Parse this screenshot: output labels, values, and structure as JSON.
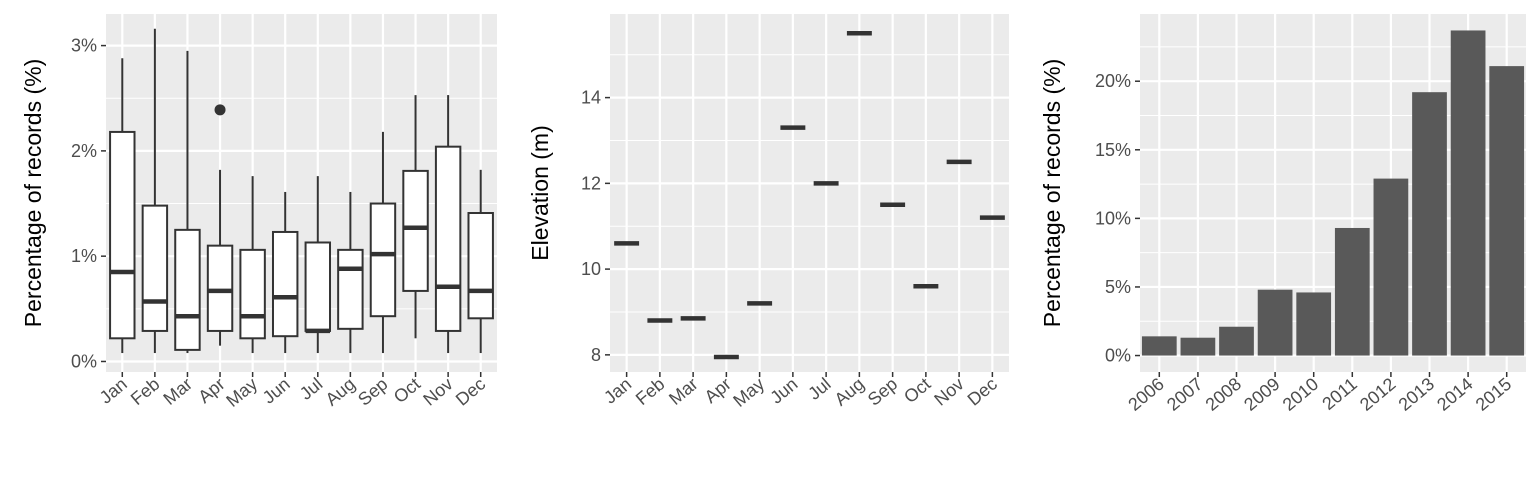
{
  "chart_data": [
    {
      "type": "boxplot",
      "ylabel": "Percentage of records (%)",
      "xlabel": "",
      "ylim": [
        -0.1,
        3.3
      ],
      "yticks": [
        0,
        1,
        2,
        3
      ],
      "ytick_labels": [
        "0%",
        "1%",
        "2%",
        "3%"
      ],
      "categories": [
        "Jan",
        "Feb",
        "Mar",
        "Apr",
        "May",
        "Jun",
        "Jul",
        "Aug",
        "Sep",
        "Oct",
        "Nov",
        "Dec"
      ],
      "boxes": [
        {
          "min": 0.08,
          "q1": 0.22,
          "median": 0.85,
          "q3": 2.18,
          "max": 2.88,
          "outliers": []
        },
        {
          "min": 0.08,
          "q1": 0.29,
          "median": 0.57,
          "q3": 1.48,
          "max": 3.16,
          "outliers": []
        },
        {
          "min": 0.08,
          "q1": 0.11,
          "median": 0.43,
          "q3": 1.25,
          "max": 2.95,
          "outliers": []
        },
        {
          "min": 0.15,
          "q1": 0.29,
          "median": 0.67,
          "q3": 1.1,
          "max": 1.82,
          "outliers": [
            2.39
          ]
        },
        {
          "min": 0.08,
          "q1": 0.22,
          "median": 0.43,
          "q3": 1.06,
          "max": 1.76,
          "outliers": []
        },
        {
          "min": 0.08,
          "q1": 0.24,
          "median": 0.61,
          "q3": 1.23,
          "max": 1.61,
          "outliers": []
        },
        {
          "min": 0.08,
          "q1": 0.29,
          "median": 0.29,
          "q3": 1.13,
          "max": 1.76,
          "outliers": []
        },
        {
          "min": 0.08,
          "q1": 0.31,
          "median": 0.88,
          "q3": 1.06,
          "max": 1.61,
          "outliers": []
        },
        {
          "min": 0.08,
          "q1": 0.43,
          "median": 1.02,
          "q3": 1.5,
          "max": 2.18,
          "outliers": []
        },
        {
          "min": 0.22,
          "q1": 0.67,
          "median": 1.27,
          "q3": 1.81,
          "max": 2.53,
          "outliers": []
        },
        {
          "min": 0.08,
          "q1": 0.29,
          "median": 0.71,
          "q3": 2.04,
          "max": 2.53,
          "outliers": []
        },
        {
          "min": 0.08,
          "q1": 0.41,
          "median": 0.67,
          "q3": 1.41,
          "max": 1.82,
          "outliers": []
        }
      ]
    },
    {
      "type": "boxplot",
      "ylabel": "Elevation (m)",
      "xlabel": "",
      "ylim": [
        7.6,
        15.95
      ],
      "yticks": [
        8,
        10,
        12,
        14
      ],
      "ytick_labels": [
        "8",
        "10",
        "12",
        "14"
      ],
      "categories": [
        "Jan",
        "Feb",
        "Mar",
        "Apr",
        "May",
        "Jun",
        "Jul",
        "Aug",
        "Sep",
        "Oct",
        "Nov",
        "Dec"
      ],
      "values": [
        10.6,
        8.8,
        8.85,
        7.95,
        9.2,
        13.3,
        12.0,
        15.5,
        11.5,
        9.6,
        12.5,
        11.2
      ]
    },
    {
      "type": "bar",
      "ylabel": "Percentage of records (%)",
      "xlabel": "",
      "ylim": [
        -1.2,
        24.9
      ],
      "yticks": [
        0,
        5,
        10,
        15,
        20
      ],
      "ytick_labels": [
        "0%",
        "5%",
        "10%",
        "15%",
        "20%"
      ],
      "categories": [
        "2006",
        "2007",
        "2008",
        "2009",
        "2010",
        "2011",
        "2012",
        "2013",
        "2014",
        "2015"
      ],
      "values": [
        1.4,
        1.3,
        2.1,
        4.8,
        4.6,
        9.3,
        12.9,
        19.2,
        23.7,
        21.1
      ]
    }
  ],
  "colors": {
    "panel_bg": "#ebebeb",
    "grid": "#ffffff",
    "box_fill": "#ffffff",
    "box_line": "#333333",
    "bar_fill": "#595959",
    "tick_text": "#4d4d4d",
    "axis_tick": "#333333"
  }
}
